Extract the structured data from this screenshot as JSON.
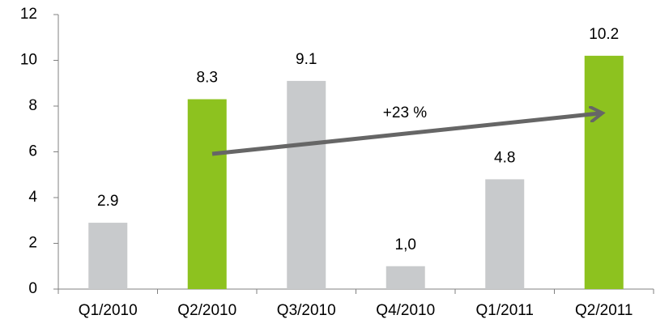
{
  "chart_data": {
    "type": "bar",
    "categories": [
      "Q1/2010",
      "Q2/2010",
      "Q3/2010",
      "Q4/2010",
      "Q1/2011",
      "Q2/2011"
    ],
    "values": [
      2.9,
      8.3,
      9.1,
      1.0,
      4.8,
      10.2
    ],
    "value_labels": [
      "2.9",
      "8.3",
      "9.1",
      "1,0",
      "4.8",
      "10.2"
    ],
    "colors": [
      "#c8cacc",
      "#8dc21f",
      "#c8cacc",
      "#c8cacc",
      "#c8cacc",
      "#8dc21f"
    ],
    "ylim": [
      0,
      12
    ],
    "yticks": [
      0,
      2,
      4,
      6,
      8,
      10,
      12
    ],
    "annotation": "+23 %"
  }
}
